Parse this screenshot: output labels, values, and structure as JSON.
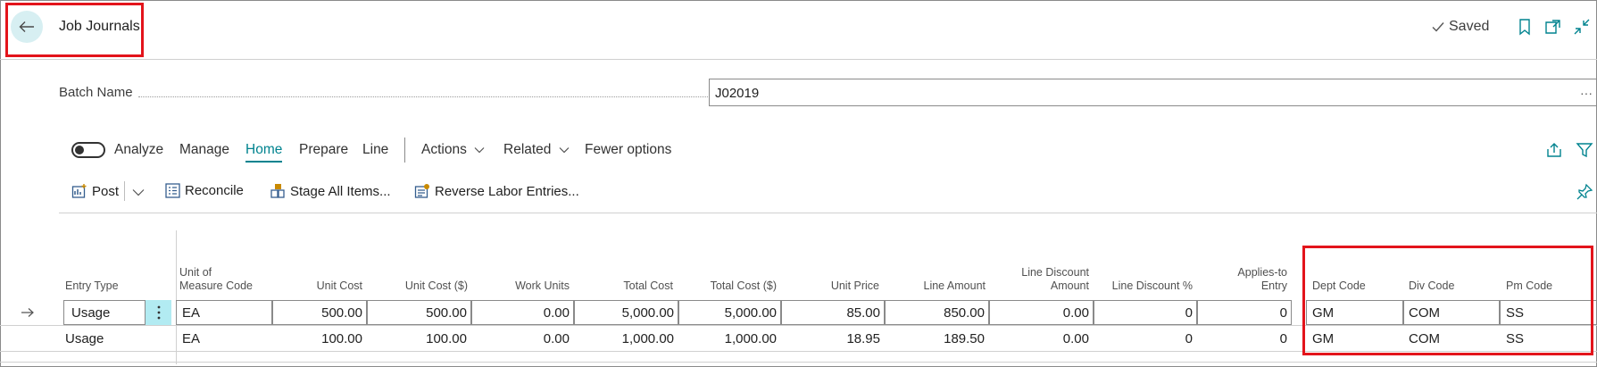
{
  "header": {
    "title": "Job Journals",
    "saved_label": "Saved"
  },
  "batch": {
    "label": "Batch Name",
    "value": "J02019",
    "more": "···"
  },
  "tabs": {
    "analyze": "Analyze",
    "manage": "Manage",
    "home": "Home",
    "prepare": "Prepare",
    "line": "Line",
    "actions": "Actions",
    "related": "Related",
    "fewer": "Fewer options"
  },
  "actions": {
    "post": "Post",
    "reconcile": "Reconcile",
    "stage_all": "Stage All Items...",
    "reverse_labor": "Reverse Labor Entries..."
  },
  "columns": {
    "entry_type": "Entry Type",
    "uom_1": "Unit of",
    "uom_2": "Measure Code",
    "unit_cost": "Unit Cost",
    "unit_cost_usd": "Unit Cost ($)",
    "work_units": "Work Units",
    "total_cost": "Total Cost",
    "total_cost_usd": "Total Cost ($)",
    "unit_price": "Unit Price",
    "line_amount": "Line Amount",
    "line_disc_amt_1": "Line Discount",
    "line_disc_amt_2": "Amount",
    "line_disc_pct": "Line Discount %",
    "applies_1": "Applies-to",
    "applies_2": "Entry",
    "dept": "Dept Code",
    "div": "Div Code",
    "pm": "Pm Code"
  },
  "rows": [
    {
      "entry_type": "Usage",
      "uom": "EA",
      "unit_cost": "500.00",
      "unit_cost_usd": "500.00",
      "work_units": "0.00",
      "total_cost": "5,000.00",
      "total_cost_usd": "5,000.00",
      "unit_price": "85.00",
      "line_amount": "850.00",
      "line_disc_amt": "0.00",
      "line_disc_pct": "0",
      "applies": "0",
      "dept": "GM",
      "div": "COM",
      "pm": "SS"
    },
    {
      "entry_type": "Usage",
      "uom": "EA",
      "unit_cost": "100.00",
      "unit_cost_usd": "100.00",
      "work_units": "0.00",
      "total_cost": "1,000.00",
      "total_cost_usd": "1,000.00",
      "unit_price": "18.95",
      "line_amount": "189.50",
      "line_disc_amt": "0.00",
      "line_disc_pct": "0",
      "applies": "0",
      "dept": "GM",
      "div": "COM",
      "pm": "SS"
    }
  ]
}
